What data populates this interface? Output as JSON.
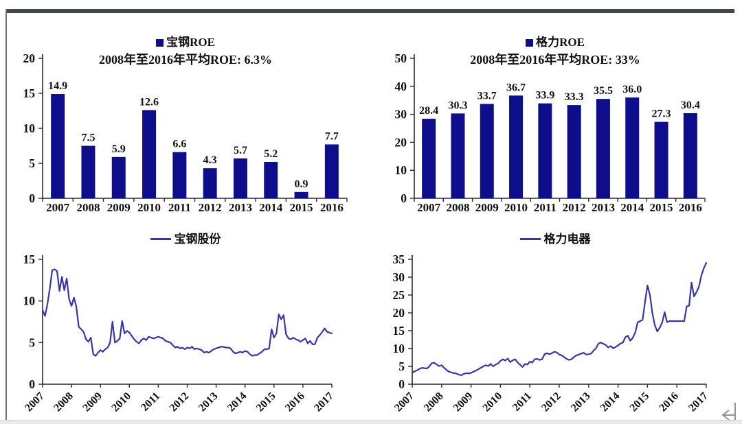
{
  "page": {
    "frame_color": "#41484e",
    "bottom_strip_color": "#e9ebeb",
    "background": "#ffffff"
  },
  "colors": {
    "bar_fill": "#0e0e8c",
    "line_stroke": "#3636a8",
    "axis": "#2a2a2a",
    "text": "#111111",
    "corner_icon": "#8d959b"
  },
  "icons": {
    "corner_icon_name": "left-arrow-to-bar-icon"
  },
  "chart_data": [
    {
      "id": "baogang-roe",
      "type": "bar",
      "legend": "宝钢ROE",
      "subtitle": "2008年至2016年平均ROE: 6.3%",
      "categories": [
        "2007",
        "2008",
        "2009",
        "2010",
        "2011",
        "2012",
        "2013",
        "2014",
        "2015",
        "2016"
      ],
      "values": [
        14.9,
        7.5,
        5.9,
        12.6,
        6.6,
        4.3,
        5.7,
        5.2,
        0.9,
        7.7
      ],
      "ylim": [
        0,
        20
      ],
      "yticks": [
        0,
        5,
        10,
        15,
        20
      ],
      "grid": false,
      "legend_position": "top-center",
      "value_labels": true
    },
    {
      "id": "geli-roe",
      "type": "bar",
      "legend": "格力ROE",
      "subtitle": "2008年至2016年平均ROE: 33%",
      "categories": [
        "2007",
        "2008",
        "2009",
        "2010",
        "2011",
        "2012",
        "2013",
        "2014",
        "2015",
        "2016"
      ],
      "values": [
        28.4,
        30.3,
        33.7,
        36.7,
        33.9,
        33.3,
        35.5,
        36.0,
        27.3,
        30.4
      ],
      "ylim": [
        0,
        50
      ],
      "yticks": [
        0,
        10,
        20,
        30,
        40,
        50
      ],
      "grid": false,
      "legend_position": "top-center",
      "value_labels": true
    },
    {
      "id": "baogang-price",
      "type": "line",
      "legend": "宝钢股份",
      "x_ticks": [
        "2007",
        "2008",
        "2009",
        "2010",
        "2011",
        "2012",
        "2013",
        "2014",
        "2015",
        "2016",
        "2017"
      ],
      "ylim": [
        0,
        15
      ],
      "yticks": [
        0,
        5,
        10,
        15
      ],
      "grid": false,
      "legend_position": "top-center",
      "values": [
        8.9,
        8.2,
        9.6,
        11.5,
        13.7,
        13.8,
        13.6,
        11.2,
        12.9,
        11.3,
        12.7,
        10.2,
        9.4,
        10.4,
        9.3,
        6.9,
        6.6,
        6.3,
        5.4,
        5.1,
        5.6,
        3.6,
        3.4,
        3.8,
        4.1,
        3.9,
        4.2,
        4.4,
        5.0,
        7.5,
        5.0,
        5.2,
        5.5,
        7.6,
        6.1,
        6.4,
        6.2,
        5.8,
        5.4,
        5.1,
        4.9,
        5.3,
        5.5,
        5.3,
        5.7,
        5.6,
        5.5,
        5.6,
        5.7,
        5.6,
        5.5,
        5.2,
        5.1,
        5.0,
        4.7,
        4.4,
        4.5,
        4.3,
        4.4,
        4.2,
        4.4,
        4.3,
        4.5,
        4.2,
        4.3,
        4.2,
        4.1,
        3.8,
        3.9,
        3.8,
        4.0,
        4.2,
        4.3,
        4.4,
        4.5,
        4.5,
        4.4,
        4.4,
        4.3,
        3.9,
        3.7,
        3.8,
        3.9,
        3.8,
        4.0,
        3.9,
        3.6,
        3.4,
        3.5,
        3.5,
        3.7,
        3.9,
        4.2,
        4.2,
        4.3,
        6.6,
        5.6,
        6.1,
        8.4,
        7.8,
        8.3,
        6.0,
        5.5,
        5.4,
        5.6,
        5.4,
        5.3,
        5.1,
        5.3,
        5.5,
        4.9,
        5.2,
        4.8,
        4.8,
        5.6,
        5.9,
        6.3,
        6.7,
        6.3,
        6.2,
        6.1
      ]
    },
    {
      "id": "geli-price",
      "type": "line",
      "legend": "格力电器",
      "x_ticks": [
        "2007",
        "2008",
        "2009",
        "2010",
        "2011",
        "2012",
        "2013",
        "2014",
        "2015",
        "2016",
        "2017"
      ],
      "ylim": [
        0,
        35
      ],
      "yticks": [
        0,
        5,
        10,
        15,
        20,
        25,
        30,
        35
      ],
      "grid": false,
      "legend_position": "top-center",
      "values": [
        3.2,
        3.6,
        3.9,
        4.3,
        4.6,
        4.5,
        4.4,
        5.0,
        5.9,
        6.0,
        5.5,
        5.1,
        5.3,
        4.6,
        4.0,
        3.5,
        3.3,
        3.1,
        3.0,
        2.7,
        2.5,
        2.9,
        3.1,
        3.0,
        3.2,
        3.5,
        3.8,
        4.2,
        4.6,
        5.0,
        5.3,
        5.1,
        5.7,
        5.0,
        5.5,
        5.8,
        6.5,
        7.0,
        6.6,
        7.2,
        6.2,
        6.7,
        7.0,
        6.1,
        5.5,
        4.8,
        5.7,
        5.5,
        6.3,
        6.1,
        7.0,
        7.1,
        6.8,
        7.0,
        8.4,
        8.7,
        8.4,
        8.7,
        9.1,
        8.9,
        8.3,
        8.1,
        7.6,
        7.1,
        6.8,
        7.0,
        7.6,
        8.1,
        8.3,
        8.6,
        8.8,
        8.3,
        8.4,
        8.6,
        9.4,
        10.1,
        11.4,
        11.7,
        11.3,
        11.0,
        10.3,
        10.7,
        10.1,
        10.4,
        10.9,
        11.4,
        11.7,
        13.2,
        13.6,
        12.2,
        13.0,
        14.5,
        17.3,
        17.7,
        18.0,
        23.0,
        27.7,
        25.0,
        20.0,
        16.5,
        14.8,
        15.8,
        17.3,
        20.2,
        17.4,
        17.7,
        17.7,
        17.7,
        17.7,
        17.7,
        17.7,
        17.7,
        21.8,
        22.0,
        28.5,
        24.6,
        25.8,
        27.3,
        30.5,
        32.5,
        34.0
      ]
    }
  ]
}
